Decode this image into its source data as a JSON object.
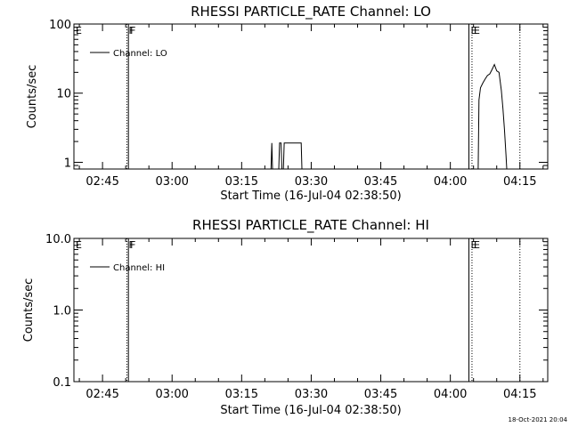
{
  "chart_data": [
    {
      "type": "line",
      "title": "RHESSI PARTICLE_RATE Channel: LO",
      "xlabel": "Start Time (16-Jul-04 02:38:50)",
      "ylabel": "Counts/sec",
      "yscale": "log",
      "xlim": [
        "02:38:50",
        "04:21:00"
      ],
      "ylim": [
        0.8,
        100
      ],
      "x_ticks": [
        "02:45",
        "03:00",
        "03:15",
        "03:30",
        "03:45",
        "04:00",
        "04:15"
      ],
      "y_ticks": [
        "1",
        "10",
        "100"
      ],
      "legend": {
        "position": "top-left",
        "entries": [
          "Channel: LO"
        ]
      },
      "flags": [
        {
          "label": "E",
          "time": "02:38:50",
          "style": "solid"
        },
        {
          "label": "F",
          "time": "02:50:15",
          "style": "dotted"
        },
        {
          "label": "F",
          "time": "02:50:35",
          "style": "solid"
        },
        {
          "label": "E",
          "time": "04:04:00",
          "style": "solid"
        },
        {
          "label": "E",
          "time": "04:04:40",
          "style": "dotted"
        },
        {
          "label": "",
          "time": "04:15:00",
          "style": "dotted"
        }
      ],
      "series": [
        {
          "name": "Channel: LO",
          "segments": [
            {
              "x": [
                "03:21:20",
                "03:21:30",
                "03:21:40"
              ],
              "y": [
                0.8,
                1.9,
                0.8
              ]
            },
            {
              "x": [
                "03:23:00",
                "03:23:10",
                "03:23:30",
                "03:23:40",
                "03:23:50"
              ],
              "y": [
                0.8,
                1.9,
                1.9,
                0.8,
                0.8
              ]
            },
            {
              "x": [
                "03:24:00",
                "03:24:10",
                "03:27:50",
                "03:28:00"
              ],
              "y": [
                0.8,
                1.9,
                1.9,
                0.8
              ]
            },
            {
              "x": [
                "04:06:00",
                "04:06:10",
                "04:06:30",
                "04:07:00",
                "04:07:30",
                "04:08:00",
                "04:08:30",
                "04:09:00",
                "04:09:30",
                "04:10:00",
                "04:10:30",
                "04:11:00",
                "04:11:20",
                "04:11:40",
                "04:12:00",
                "04:12:10"
              ],
              "y": [
                0.8,
                8,
                12,
                14,
                16,
                18,
                19,
                22,
                26,
                21,
                20,
                11,
                6,
                3,
                1.3,
                0.8
              ]
            }
          ]
        }
      ]
    },
    {
      "type": "line",
      "title": "RHESSI PARTICLE_RATE Channel: HI",
      "xlabel": "Start Time (16-Jul-04 02:38:50)",
      "ylabel": "Counts/sec",
      "yscale": "log",
      "xlim": [
        "02:38:50",
        "04:21:00"
      ],
      "ylim": [
        0.1,
        10
      ],
      "x_ticks": [
        "02:45",
        "03:00",
        "03:15",
        "03:30",
        "03:45",
        "04:00",
        "04:15"
      ],
      "y_ticks": [
        "0.1",
        "1.0",
        "10.0"
      ],
      "legend": {
        "position": "top-left",
        "entries": [
          "Channel: HI"
        ]
      },
      "flags": [
        {
          "label": "E",
          "time": "02:38:50",
          "style": "solid"
        },
        {
          "label": "F",
          "time": "02:50:15",
          "style": "dotted"
        },
        {
          "label": "F",
          "time": "02:50:35",
          "style": "solid"
        },
        {
          "label": "E",
          "time": "04:04:00",
          "style": "solid"
        },
        {
          "label": "E",
          "time": "04:04:40",
          "style": "dotted"
        },
        {
          "label": "",
          "time": "04:15:00",
          "style": "dotted"
        }
      ],
      "series": [
        {
          "name": "Channel: HI",
          "segments": []
        }
      ]
    }
  ],
  "footer": "18-Oct-2021 20:04"
}
